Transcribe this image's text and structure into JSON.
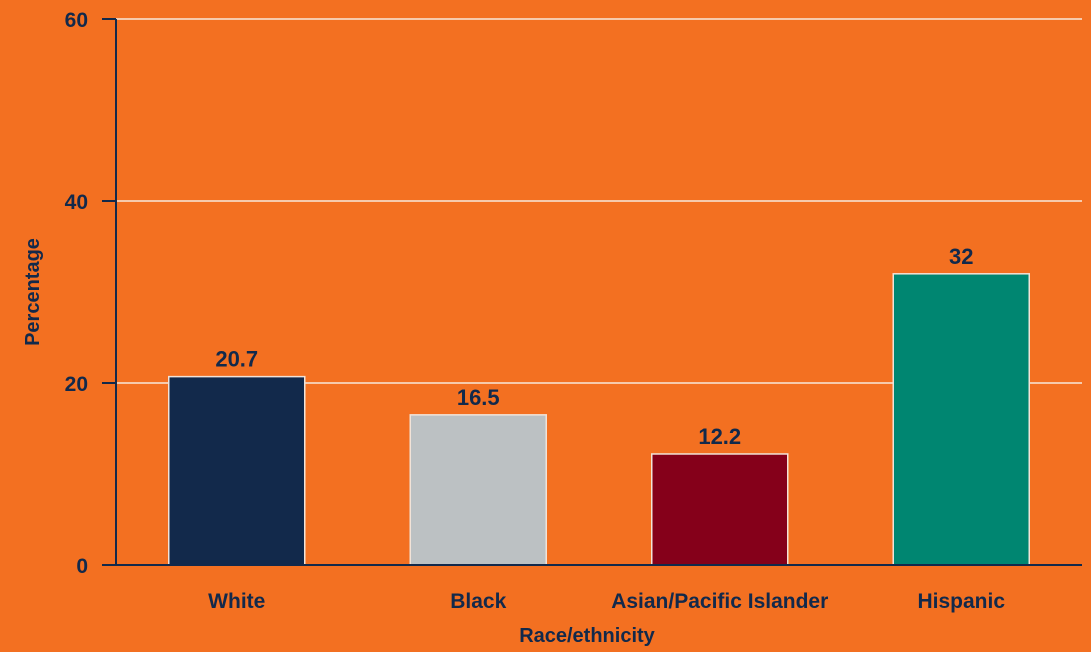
{
  "chart_data": {
    "type": "bar",
    "categories": [
      "White",
      "Black",
      "Asian/Pacific Islander",
      "Hispanic"
    ],
    "values": [
      20.7,
      16.5,
      12.2,
      32
    ],
    "value_labels": [
      "20.7",
      "16.5",
      "12.2",
      "32"
    ],
    "xlabel": "Race/ethnicity",
    "ylabel": "Percentage",
    "ylim": [
      0,
      60
    ],
    "yticks": [
      0,
      20,
      40,
      60
    ],
    "ytick_labels": [
      "0",
      "20",
      "40",
      "60"
    ],
    "grid": true,
    "legend": "none",
    "colors": {
      "background": "#F37021",
      "bars": [
        "#12294B",
        "#BCC1C3",
        "#85001A",
        "#008671"
      ],
      "text": "#12294B",
      "gridline": "#F7E7DA",
      "axis": "#12294B"
    }
  }
}
